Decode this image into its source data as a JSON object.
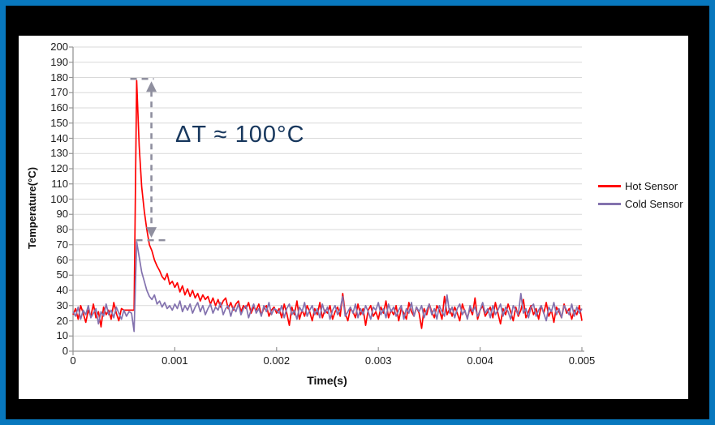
{
  "frame": {
    "border_color": "#0878BE",
    "slide_background": "#000000",
    "chart_background": "#FFFFFF"
  },
  "annotation": {
    "text": "ΔT ≈ 100°C",
    "color": "#17375D",
    "arrow_color": "#8F8F9F",
    "arrow_time": 0.00077,
    "arrow_top_value": 178,
    "arrow_bottom_value": 73
  },
  "chart_data": {
    "type": "line",
    "title": "",
    "xlabel": "Time(s)",
    "ylabel": "Temperature(°C)",
    "xlim": [
      0,
      0.005
    ],
    "ylim": [
      0,
      200
    ],
    "grid": "horizontal",
    "legend_position": "right",
    "colors": {
      "grid": "#D9D9D9",
      "axis": "#969696"
    },
    "x_ticks": [
      0,
      0.001,
      0.002,
      0.003,
      0.004,
      0.005
    ],
    "x_tick_labels": [
      "0",
      "0.001",
      "0.002",
      "0.003",
      "0.004",
      "0.005"
    ],
    "y_ticks": [
      0,
      10,
      20,
      30,
      40,
      50,
      60,
      70,
      80,
      90,
      100,
      110,
      120,
      130,
      140,
      150,
      160,
      170,
      180,
      190,
      200
    ],
    "sampling": {
      "t_start": 0,
      "t_step": 2.5e-05
    },
    "series": [
      {
        "name": "Hot Sensor",
        "color": "#FF0000",
        "peak_value": 178,
        "peak_time": 0.000625,
        "baseline_mean": 26,
        "values": [
          24,
          28,
          21,
          30,
          25,
          19,
          27,
          23,
          31,
          22,
          26,
          16,
          29,
          24,
          27,
          21,
          32,
          25,
          20,
          28,
          27,
          27,
          27,
          27,
          27,
          178,
          135,
          108,
          92,
          80,
          70,
          66,
          60,
          56,
          53,
          49,
          47,
          51,
          44,
          46,
          42,
          45,
          39,
          43,
          37,
          41,
          36,
          40,
          35,
          38,
          33,
          37,
          34,
          36,
          31,
          35,
          30,
          34,
          29,
          33,
          35,
          28,
          32,
          27,
          31,
          33,
          26,
          30,
          28,
          32,
          25,
          29,
          27,
          31,
          24,
          28,
          30,
          23,
          27,
          29,
          25,
          28,
          22,
          31,
          25,
          17,
          29,
          24,
          33,
          21,
          27,
          23,
          30,
          26,
          20,
          28,
          24,
          32,
          22,
          27,
          25,
          30,
          21,
          26,
          29,
          23,
          38,
          25,
          20,
          28,
          26,
          22,
          31,
          24,
          28,
          17,
          27,
          30,
          23,
          26,
          21,
          29,
          25,
          33,
          22,
          27,
          24,
          30,
          20,
          28,
          25,
          21,
          32,
          26,
          23,
          29,
          25,
          15,
          28,
          24,
          31,
          26,
          22,
          30,
          27,
          21,
          36,
          24,
          28,
          23,
          29,
          25,
          20,
          31,
          26,
          22,
          28,
          24,
          35,
          21,
          27,
          30,
          23,
          26,
          29,
          22,
          32,
          25,
          18,
          28,
          24,
          31,
          26,
          20,
          29,
          23,
          27,
          34,
          22,
          26,
          30,
          24,
          28,
          21,
          30,
          25,
          32,
          23,
          27,
          19,
          29,
          26,
          22,
          31,
          25,
          28,
          21,
          27,
          24,
          30,
          20
        ]
      },
      {
        "name": "Cold Sensor",
        "color": "#8372AE",
        "peak_value": 72,
        "peak_time": 0.000625,
        "baseline_mean": 26,
        "values": [
          26,
          23,
          29,
          21,
          27,
          24,
          30,
          22,
          25,
          28,
          18,
          26,
          23,
          31,
          24,
          27,
          22,
          29,
          25,
          21,
          27,
          23,
          26,
          25,
          13,
          72,
          62,
          52,
          46,
          40,
          36,
          34,
          37,
          31,
          33,
          29,
          32,
          28,
          30,
          27,
          31,
          28,
          33,
          26,
          30,
          27,
          31,
          25,
          29,
          32,
          26,
          30,
          24,
          28,
          31,
          25,
          29,
          27,
          32,
          24,
          28,
          30,
          23,
          29,
          26,
          31,
          24,
          28,
          30,
          22,
          27,
          31,
          25,
          28,
          23,
          30,
          26,
          32,
          24,
          28,
          27,
          25,
          30,
          22,
          28,
          31,
          24,
          27,
          21,
          29,
          26,
          32,
          23,
          27,
          30,
          24,
          28,
          22,
          31,
          25,
          29,
          21,
          27,
          30,
          24,
          28,
          36,
          23,
          26,
          29,
          25,
          31,
          22,
          28,
          24,
          30,
          26,
          21,
          29,
          27,
          32,
          24,
          28,
          22,
          31,
          26,
          29,
          23,
          27,
          30,
          21,
          28,
          25,
          32,
          23,
          29,
          26,
          30,
          22,
          27,
          31,
          24,
          28,
          21,
          30,
          26,
          23,
          37,
          25,
          29,
          22,
          28,
          31,
          24,
          27,
          21,
          30,
          26,
          29,
          23,
          27,
          32,
          25,
          28,
          22,
          30,
          24,
          27,
          31,
          23,
          29,
          26,
          21,
          30,
          27,
          24,
          38,
          25,
          28,
          22,
          29,
          31,
          23,
          27,
          30,
          25,
          20,
          29,
          26,
          32,
          24,
          28,
          22,
          30,
          27,
          24,
          31,
          23,
          29,
          25,
          28
        ]
      }
    ]
  }
}
